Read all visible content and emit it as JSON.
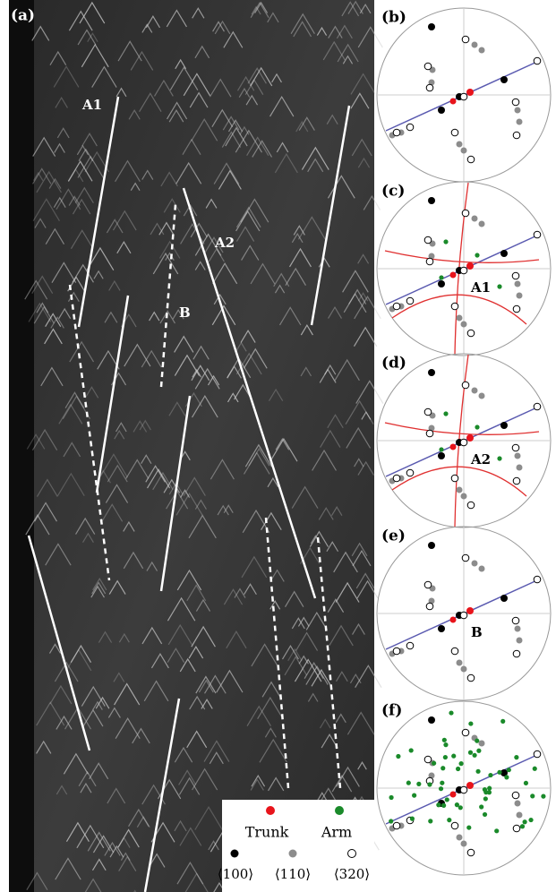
{
  "micrograph": {
    "label": "(a)",
    "annotations": [
      "A1",
      "A2",
      "B"
    ]
  },
  "pole_figures": [
    {
      "label": "(b)"
    },
    {
      "label": "(c)",
      "annotation": "A1"
    },
    {
      "label": "(d)",
      "annotation": "A2"
    },
    {
      "label": "(e)",
      "annotation": "B"
    },
    {
      "label": "(f)"
    }
  ],
  "legend": {
    "trunk": "Trunk",
    "arm": "Arm",
    "directions": [
      "⟨100⟩",
      "⟨110⟩",
      "⟨320⟩"
    ]
  }
}
